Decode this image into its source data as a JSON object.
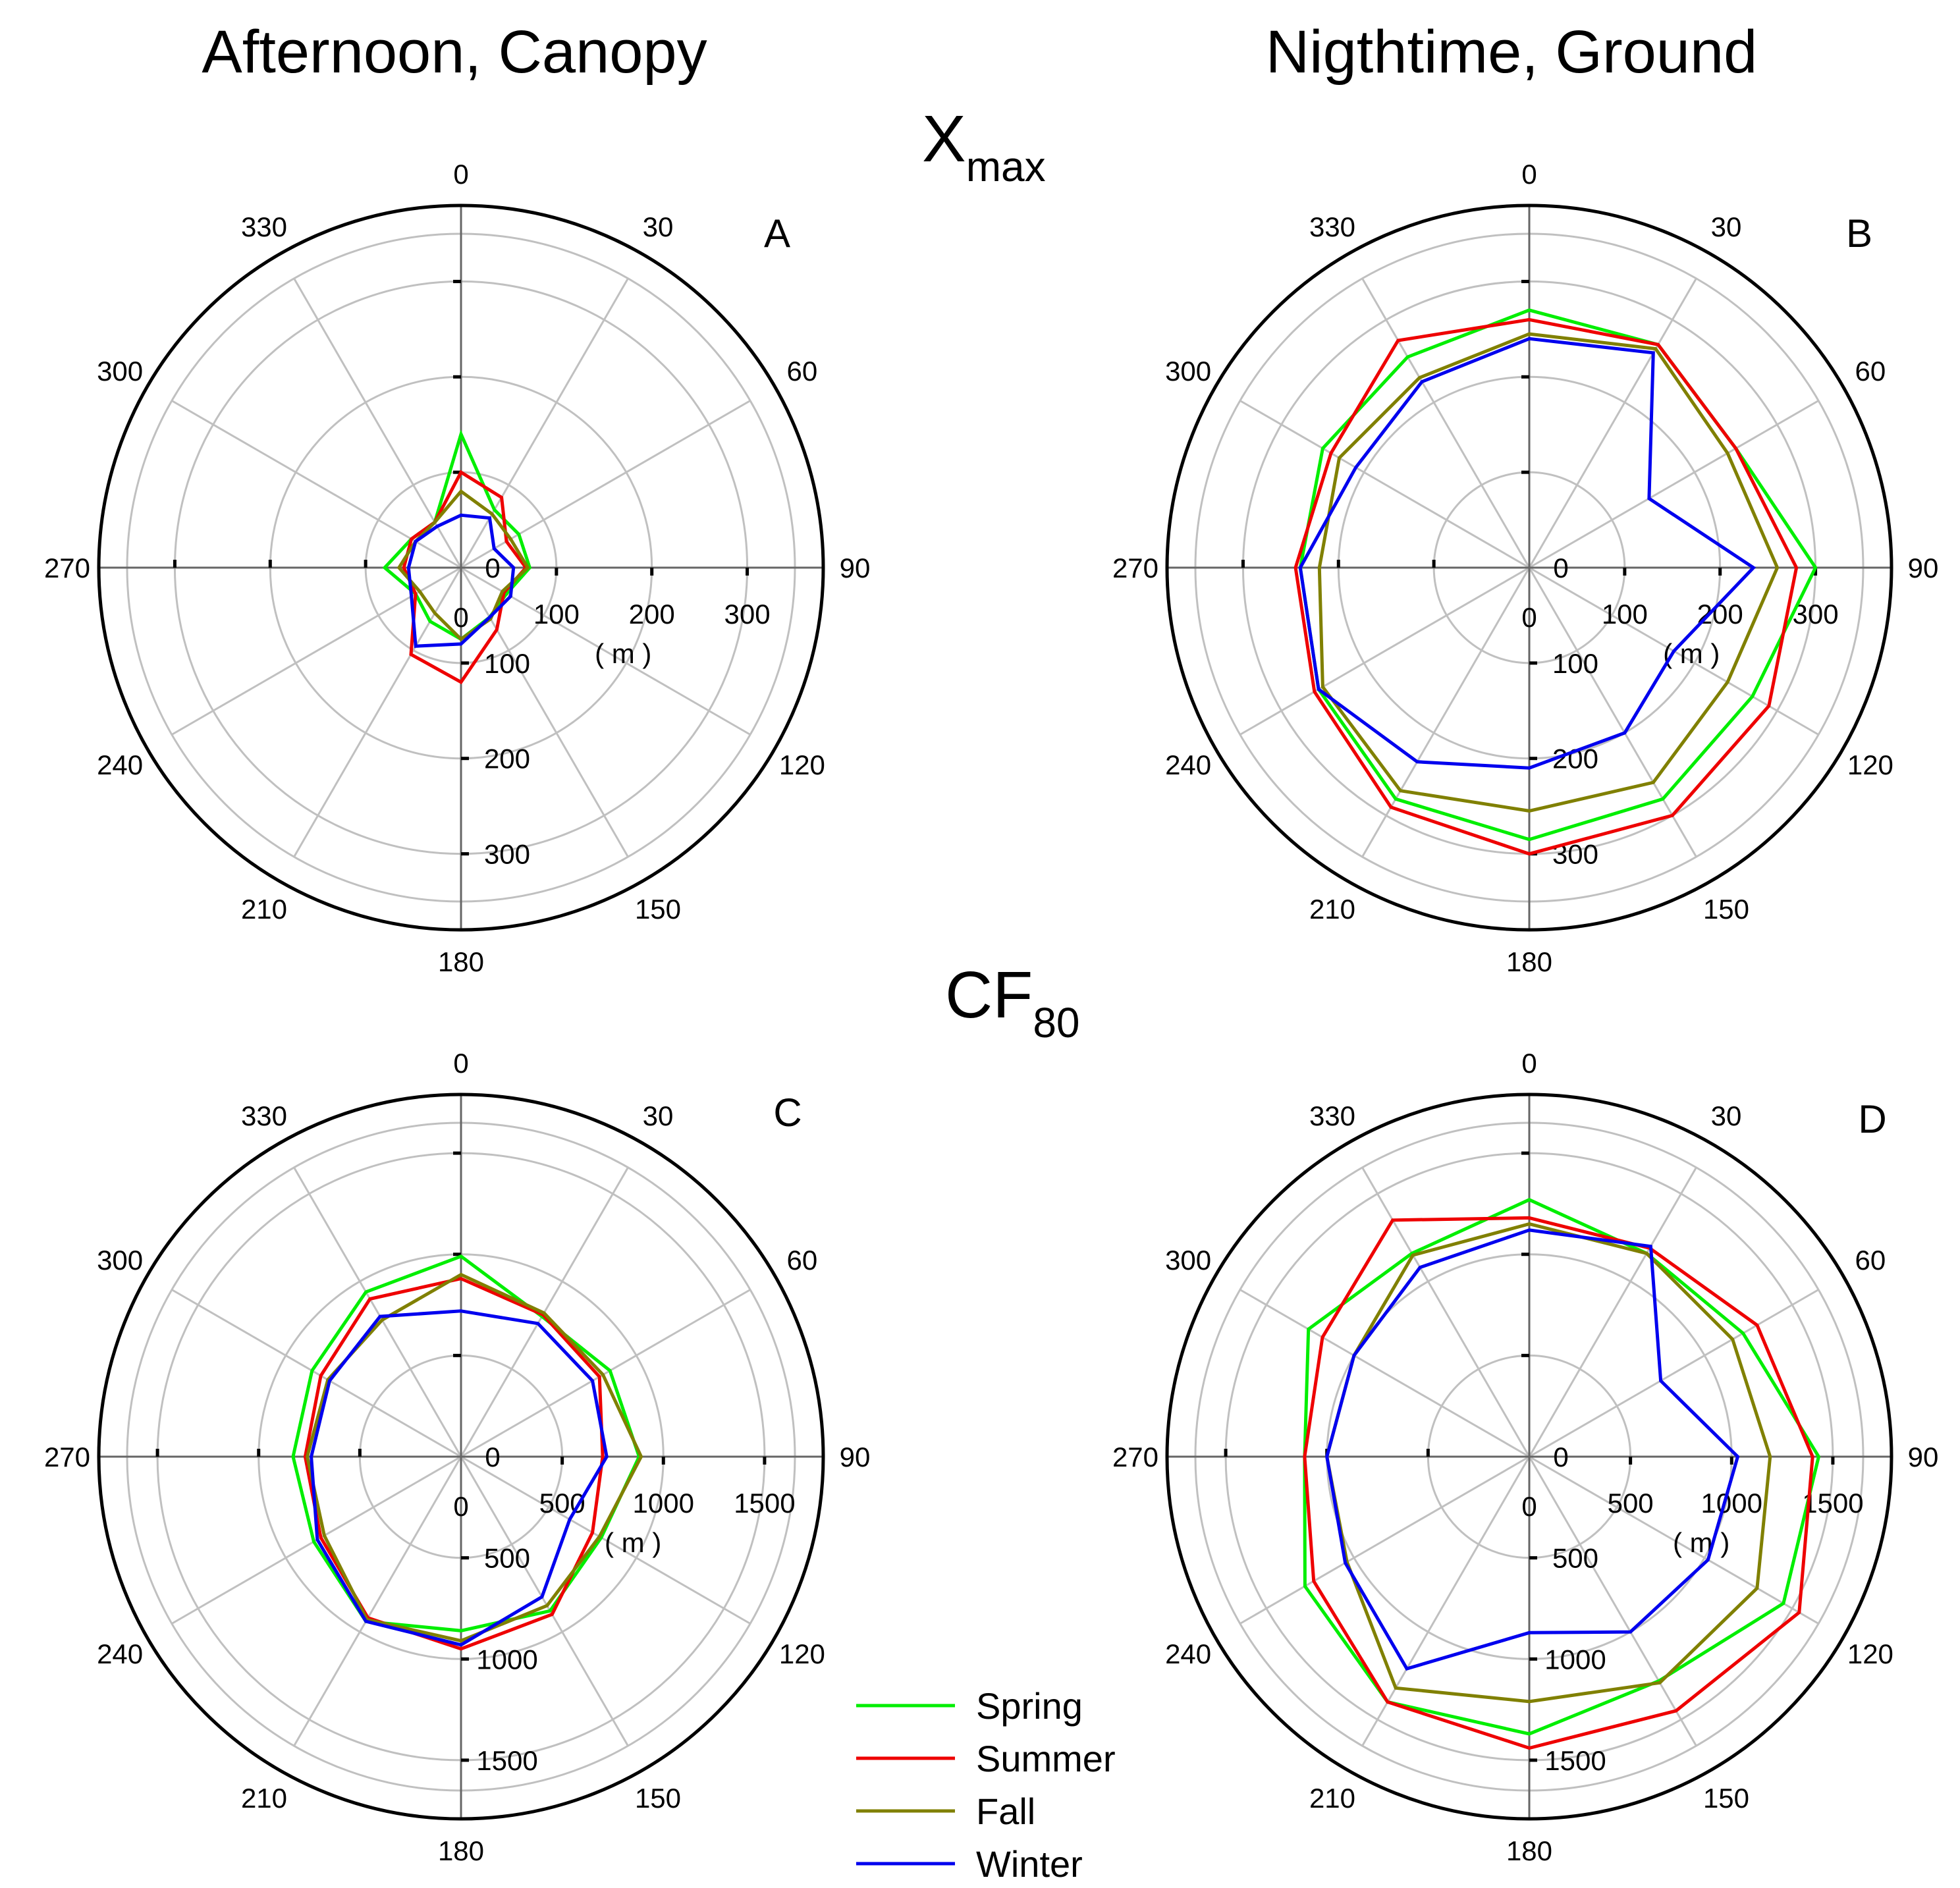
{
  "titles": {
    "col_left": "Afternoon, Canopy",
    "col_right": "Nigthtime, Ground",
    "row_top_main": "X",
    "row_top_sub": "max",
    "row_bottom_main": "CF",
    "row_bottom_sub": "80"
  },
  "legend": [
    {
      "label": "Spring",
      "color": "#00ee00"
    },
    {
      "label": "Summer",
      "color": "#ee0000"
    },
    {
      "label": "Fall",
      "color": "#808000"
    },
    {
      "label": "Winter",
      "color": "#0000ee"
    }
  ],
  "chart_data": [
    {
      "type": "radar",
      "panel": "A",
      "unit": "( m )",
      "angles": [
        0,
        30,
        60,
        90,
        120,
        150,
        180,
        210,
        240,
        270,
        300,
        330
      ],
      "angle_labels": [
        "0",
        "30",
        "60",
        "90",
        "120",
        "150",
        "180",
        "210",
        "240",
        "270",
        "300",
        "330"
      ],
      "radial_ticks": [
        0,
        100,
        200,
        300
      ],
      "rmax": 350,
      "series": [
        {
          "name": "Spring",
          "values": [
            140,
            70,
            70,
            72,
            55,
            60,
            75,
            65,
            55,
            80,
            60,
            55
          ]
        },
        {
          "name": "Summer",
          "values": [
            100,
            85,
            55,
            68,
            52,
            75,
            120,
            105,
            55,
            60,
            60,
            55
          ]
        },
        {
          "name": "Fall",
          "values": [
            80,
            65,
            60,
            70,
            50,
            62,
            75,
            55,
            50,
            65,
            55,
            55
          ]
        },
        {
          "name": "Winter",
          "values": [
            55,
            60,
            40,
            55,
            60,
            60,
            80,
            95,
            60,
            55,
            55,
            50
          ]
        }
      ]
    },
    {
      "type": "radar",
      "panel": "B",
      "unit": "( m )",
      "angles": [
        0,
        30,
        60,
        90,
        120,
        150,
        180,
        210,
        240,
        270,
        300,
        330
      ],
      "angle_labels": [
        "0",
        "30",
        "60",
        "90",
        "120",
        "150",
        "180",
        "210",
        "240",
        "270",
        "300",
        "330"
      ],
      "radial_ticks": [
        0,
        100,
        200,
        300
      ],
      "rmax": 350,
      "series": [
        {
          "name": "Spring",
          "values": [
            270,
            270,
            250,
            300,
            270,
            280,
            285,
            280,
            255,
            240,
            250,
            255
          ]
        },
        {
          "name": "Summer",
          "values": [
            260,
            270,
            250,
            280,
            290,
            300,
            300,
            290,
            260,
            245,
            240,
            275
          ]
        },
        {
          "name": "Fall",
          "values": [
            245,
            265,
            240,
            260,
            240,
            260,
            255,
            270,
            250,
            220,
            230,
            230
          ]
        },
        {
          "name": "Winter",
          "values": [
            240,
            260,
            145,
            235,
            175,
            200,
            210,
            235,
            255,
            240,
            210,
            225
          ]
        }
      ]
    },
    {
      "type": "radar",
      "panel": "C",
      "unit": "( m )",
      "angles": [
        0,
        30,
        60,
        90,
        120,
        150,
        180,
        210,
        240,
        270,
        300,
        330
      ],
      "angle_labels": [
        "0",
        "30",
        "60",
        "90",
        "120",
        "150",
        "180",
        "210",
        "240",
        "270",
        "300",
        "330"
      ],
      "radial_ticks": [
        0,
        500,
        1000,
        1500
      ],
      "rmax": 1650,
      "series": [
        {
          "name": "Spring",
          "values": [
            990,
            800,
            850,
            880,
            800,
            880,
            860,
            940,
            840,
            830,
            850,
            940
          ]
        },
        {
          "name": "Summer",
          "values": [
            880,
            810,
            790,
            700,
            750,
            900,
            950,
            920,
            800,
            770,
            800,
            900
          ]
        },
        {
          "name": "Fall",
          "values": [
            900,
            820,
            810,
            890,
            790,
            850,
            910,
            930,
            780,
            760,
            760,
            780
          ]
        },
        {
          "name": "Winter",
          "values": [
            720,
            760,
            750,
            720,
            620,
            800,
            930,
            940,
            820,
            740,
            750,
            800
          ]
        }
      ]
    },
    {
      "type": "radar",
      "panel": "D",
      "unit": "( m )",
      "angles": [
        0,
        30,
        60,
        90,
        120,
        150,
        180,
        210,
        240,
        270,
        300,
        330
      ],
      "angle_labels": [
        "0",
        "30",
        "60",
        "90",
        "120",
        "150",
        "180",
        "210",
        "240",
        "270",
        "300",
        "330"
      ],
      "radial_ticks": [
        0,
        500,
        1000,
        1500
      ],
      "rmax": 1650,
      "series": [
        {
          "name": "Spring",
          "values": [
            1270,
            1160,
            1220,
            1430,
            1450,
            1280,
            1370,
            1400,
            1280,
            1110,
            1260,
            1160
          ]
        },
        {
          "name": "Summer",
          "values": [
            1180,
            1190,
            1300,
            1400,
            1540,
            1450,
            1440,
            1400,
            1230,
            1110,
            1180,
            1350
          ]
        },
        {
          "name": "Fall",
          "values": [
            1150,
            1160,
            1160,
            1190,
            1300,
            1290,
            1210,
            1320,
            1040,
            1000,
            1000,
            1150
          ]
        },
        {
          "name": "Winter",
          "values": [
            1120,
            1200,
            750,
            1030,
            1020,
            1000,
            870,
            1210,
            1050,
            1000,
            1000,
            1080
          ]
        }
      ]
    }
  ]
}
